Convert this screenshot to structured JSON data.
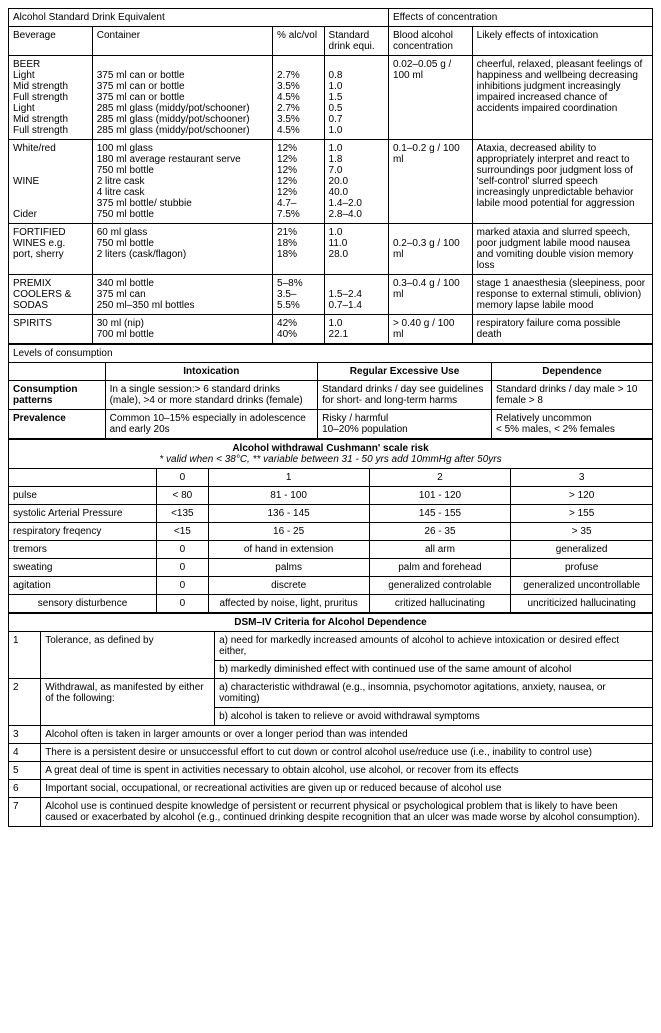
{
  "topHeaders": {
    "left": "Alcohol Standard Drink Equivalent",
    "right": "Effects of concentration"
  },
  "colHeaders": {
    "beverage": "Beverage",
    "container": "Container",
    "alcvol": "% alc/vol",
    "sde": "Standard drink equi.",
    "bac": "Blood alcohol concentration",
    "effects": "Likely effects of intoxication"
  },
  "beer": {
    "names": "BEER\nLight\nMid strength\nFull strength\nLight\nMid strength\nFull strength",
    "containers": "\n375 ml can or bottle\n375 ml can or bottle\n375 ml can or bottle\n285 ml glass (middy/pot/schooner)\n285 ml glass (middy/pot/schooner)\n285 ml glass (middy/pot/schooner)",
    "alc": "\n2.7%\n3.5%\n4.5%\n2.7%\n3.5%\n4.5%",
    "sde": "\n0.8\n1.0\n1.5\n0.5\n0.7\n1.0",
    "bac": "0.02–0.05 g / 100 ml",
    "effects": "cheerful, relaxed, pleasant feelings of happiness and wellbeing    decreasing inhibitions    judgment increasingly impaired    increased chance of accidents    impaired coordination"
  },
  "wine": {
    "names": "White/red\n\n\nWINE\n\n\nCider",
    "containers": "100 ml glass\n180 ml average restaurant serve\n750 ml bottle\n2 litre cask\n4 litre cask\n375 ml bottle/ stubbie\n750 ml bottle",
    "alc": "12%\n12%\n12%\n12%\n12%\n4.7–7.5%",
    "alc_lines": "12%\n12%\n12%\n12%\n12%\n4.7–\n7.5%",
    "sde": "1.0\n1.8\n7.0\n20.0\n40.0\n1.4–2.0\n2.8–4.0",
    "bac": "0.1–0.2 g / 100 ml",
    "effects": "   Ataxia,   decreased ability to appropriately interpret and react to surroundings    poor judgment    loss of 'self-control'    slurred speech    increasingly unpredictable behavior    labile mood    potential for aggression"
  },
  "fortified": {
    "names": "FORTIFIED WINES e.g. port, sherry",
    "containers": "60 ml glass\n750 ml bottle\n2 liters (cask/flagon)",
    "alc": "21%\n18%\n18%",
    "sde": "1.0\n11.0\n28.0",
    "bac": "\n0.2–0.3 g / 100 ml",
    "effects": "marked ataxia and slurred speech, poor judgment    labile mood    nausea and vomiting    double vision    memory loss"
  },
  "premix": {
    "names": "PREMIX COOLERS & SODAS",
    "containers": "340 ml bottle\n375 ml can\n250 ml–350 ml bottles",
    "alc": "5–8%\n3.5–5.5%",
    "alc_lines": "5–8%\n3.5–\n5.5%",
    "sde": "\n1.5–2.4\n0.7–1.4",
    "bac": "0.3–0.4 g / 100 ml",
    "effects": "stage 1 anaesthesia (sleepiness, poor response to external stimuli, oblivion)    memory lapse    labile mood"
  },
  "spirits": {
    "names": "SPIRITS",
    "containers": "30 ml (nip)\n700 ml bottle",
    "alc": "42%\n40%",
    "sde": "1.0\n22.1",
    "bac": "> 0.40 g / 100 ml",
    "effects": "respiratory failure    coma    possible death"
  },
  "levels": {
    "header": "Levels of consumption",
    "cols": {
      "intox": "Intoxication",
      "reg": "Regular Excessive Use",
      "dep": "Dependence"
    },
    "rows": {
      "patternsLabel": "Consumption patterns",
      "patterns": {
        "intox": "In a single session:> 6  standard drinks (male), >4 or more standard drinks (female)",
        "reg": "Standard drinks / day see guidelines for short- and long-term harms",
        "dep": "Standard drinks / day male > 10 female > 8"
      },
      "prevLabel": "Prevalence",
      "prev": {
        "intox": "Common 10–15% especially in adolescence and early 20s",
        "reg": "Risky / harmful\n10–20% population",
        "dep": "Relatively uncommon\n< 5% males, < 2% females"
      }
    }
  },
  "cushmann": {
    "title": "Alcohol withdrawal Cushmann' scale risk",
    "note": "* valid when < 38°C, ** variable between 31 - 50 yrs add 10mmHg after 50yrs",
    "cols": [
      "",
      "0",
      "1",
      "2",
      "3"
    ],
    "rows": [
      [
        "pulse",
        "< 80",
        "81 - 100",
        "101 - 120",
        "> 120"
      ],
      [
        "systolic Arterial Pressure",
        "<135",
        "136 - 145",
        "145 - 155",
        "> 155"
      ],
      [
        "respiratory freqency",
        "<15",
        "16 - 25",
        "26 - 35",
        "> 35"
      ],
      [
        "tremors",
        "0",
        "of hand in extension",
        "all arm",
        "generalized"
      ],
      [
        "sweating",
        "0",
        "palms",
        "palm and forehead",
        "profuse"
      ],
      [
        "agitation",
        "0",
        "discrete",
        "generalized controlable",
        "generalized uncontrollable"
      ],
      [
        "sensory disturbence",
        "0",
        "affected by noise, light, pruritus",
        "critized hallucinating",
        "uncriticized hallucinating"
      ]
    ]
  },
  "dsm": {
    "title": "DSM–IV Criteria for Alcohol Dependence",
    "rows": [
      {
        "n": "1",
        "label": "Tolerance, as defined by",
        "subs": [
          "a) need for markedly increased amounts of alcohol to achieve intoxication or desired effect either,",
          "b) markedly diminished effect with continued use of the same amount of alcohol"
        ]
      },
      {
        "n": "2",
        "label": "Withdrawal, as manifested by either of the following:",
        "subs": [
          "a) characteristic withdrawal (e.g., insomnia, psychomotor agitations, anxiety, nausea, or vomiting)",
          "b) alcohol is taken to relieve or avoid withdrawal symptoms"
        ]
      },
      {
        "n": "3",
        "text": "Alcohol often is taken in larger amounts or over a longer period than was intended"
      },
      {
        "n": "4",
        "text": "There is a persistent desire or unsuccessful effort to cut down or control alcohol use/reduce use (i.e., inability to control use)"
      },
      {
        "n": "5",
        "text": "A great deal of time is spent in activities necessary to obtain alcohol, use alcohol, or recover from its effects"
      },
      {
        "n": "6",
        "text": "Important social, occupational, or recreational activities are given up or reduced because of alcohol use"
      },
      {
        "n": "7",
        "text": "Alcohol use is continued despite knowledge of persistent or recurrent physical or psychological problem that is likely to have been caused or exacerbated by alcohol (e.g., continued drinking despite recognition that an ulcer was made worse by alcohol consumption)."
      }
    ]
  }
}
